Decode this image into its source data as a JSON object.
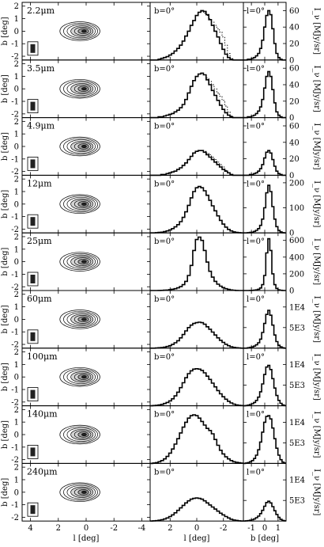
{
  "chart_data": {
    "type": "multi-panel figure (contour maps + histogram line profiles)",
    "columns": [
      {
        "name": "map",
        "xlabel": "l [deg]",
        "ylabel": "b [deg]",
        "xlim": [
          4.6,
          -4.6
        ],
        "ylim": [
          -2.3,
          2.3
        ],
        "xticks": [
          4,
          2,
          0,
          -2,
          -4
        ],
        "yticks": [
          2,
          1,
          0,
          -1,
          -2
        ]
      },
      {
        "name": "latitude-cut",
        "xlabel": "l [deg]",
        "xlim": [
          3.5,
          -3.5
        ],
        "xticks": [
          2,
          0,
          -2
        ]
      },
      {
        "name": "longitude-cut",
        "xlabel": "b [deg]",
        "xlim": [
          -1.6,
          1.6
        ],
        "xticks": [
          -1,
          0,
          1
        ]
      }
    ],
    "y_axis_label": "I_ν [MJy/sr]",
    "rows": [
      {
        "wavelength": "2.2μm",
        "cut_b": "b=0°",
        "cut_l": "l=0°",
        "ymax": 70,
        "ytick_labels": [
          "0",
          "20",
          "40",
          "60"
        ],
        "ytick_values": [
          0,
          20,
          40,
          60
        ],
        "l_profile": [
          0,
          0,
          0,
          1,
          2,
          3,
          4,
          6,
          8,
          11,
          14,
          18,
          23,
          29,
          35,
          42,
          48,
          54,
          58,
          60,
          59,
          55,
          49,
          42,
          35,
          28,
          20,
          13,
          7,
          3,
          1,
          0,
          0,
          0,
          0
        ],
        "l_dotted": [
          null,
          null,
          null,
          null,
          null,
          null,
          null,
          null,
          null,
          null,
          null,
          null,
          null,
          null,
          null,
          null,
          null,
          null,
          null,
          59,
          57,
          54,
          50,
          46,
          42,
          38,
          34,
          28,
          18,
          8,
          2,
          null,
          null,
          null,
          null
        ],
        "b_profile": [
          0,
          0,
          1,
          1,
          2,
          3,
          5,
          8,
          14,
          24,
          40,
          54,
          60,
          55,
          38,
          20,
          8,
          3,
          1,
          0,
          0
        ]
      },
      {
        "wavelength": "3.5μm",
        "cut_b": "b=0°",
        "cut_l": "l=0°",
        "ymax": 70,
        "ytick_labels": [
          "0",
          "20",
          "40",
          "60"
        ],
        "ytick_values": [
          0,
          20,
          40,
          60
        ],
        "l_profile": [
          0,
          0,
          0,
          1,
          1,
          2,
          3,
          4,
          5,
          7,
          9,
          12,
          16,
          22,
          30,
          38,
          45,
          50,
          53,
          54,
          52,
          46,
          40,
          33,
          27,
          21,
          15,
          10,
          6,
          3,
          1,
          0,
          0,
          0,
          0
        ],
        "l_dotted": [
          null,
          null,
          null,
          null,
          null,
          null,
          null,
          null,
          null,
          null,
          null,
          null,
          null,
          null,
          null,
          null,
          null,
          null,
          null,
          54,
          52,
          48,
          44,
          40,
          35,
          30,
          26,
          21,
          14,
          7,
          2,
          null,
          null,
          null,
          null
        ],
        "b_profile": [
          0,
          0,
          1,
          1,
          2,
          3,
          5,
          8,
          13,
          22,
          36,
          50,
          56,
          50,
          34,
          18,
          7,
          3,
          1,
          0,
          0
        ]
      },
      {
        "wavelength": "4.9μm",
        "cut_b": "b=0°",
        "cut_l": "l=0°",
        "ymax": 70,
        "ytick_labels": [
          "0",
          "20",
          "40",
          "60"
        ],
        "ytick_values": [
          0,
          20,
          40,
          60
        ],
        "l_profile": [
          0,
          0,
          0,
          0,
          1,
          1,
          2,
          3,
          4,
          5,
          7,
          9,
          12,
          15,
          19,
          23,
          27,
          29,
          30,
          30,
          28,
          25,
          22,
          19,
          16,
          13,
          10,
          7,
          5,
          3,
          1,
          0,
          0,
          0,
          0
        ],
        "l_dotted": [
          null,
          null,
          null,
          null,
          null,
          null,
          null,
          null,
          null,
          null,
          null,
          null,
          null,
          null,
          null,
          null,
          null,
          null,
          null,
          30,
          29,
          27,
          25,
          22,
          19,
          16,
          13,
          10,
          6,
          3,
          1,
          null,
          null,
          null,
          null
        ],
        "b_profile": [
          0,
          0,
          0,
          1,
          1,
          2,
          3,
          5,
          8,
          13,
          21,
          28,
          30,
          27,
          19,
          11,
          5,
          2,
          1,
          0,
          0
        ]
      },
      {
        "wavelength": "12μm",
        "cut_b": "b=0°",
        "cut_l": "l=0°",
        "ymax": 230,
        "ytick_labels": [
          "0",
          "100",
          "200"
        ],
        "ytick_values": [
          0,
          100,
          200
        ],
        "l_profile": [
          0,
          0,
          1,
          2,
          3,
          5,
          8,
          12,
          17,
          24,
          33,
          45,
          62,
          84,
          110,
          140,
          165,
          180,
          185,
          180,
          168,
          150,
          130,
          108,
          88,
          68,
          50,
          35,
          23,
          14,
          8,
          4,
          2,
          1,
          0
        ],
        "l_dotted": [],
        "b_profile": [
          0,
          0,
          1,
          2,
          3,
          6,
          10,
          17,
          30,
          55,
          100,
          160,
          190,
          165,
          105,
          55,
          25,
          10,
          4,
          1,
          0
        ]
      },
      {
        "wavelength": "25μm",
        "cut_b": "b=0°",
        "cut_l": "l=0°",
        "ymax": 690,
        "ytick_labels": [
          "0",
          "200",
          "400",
          "600"
        ],
        "ytick_values": [
          0,
          200,
          400,
          600
        ],
        "l_profile": [
          0,
          0,
          0,
          1,
          2,
          4,
          6,
          10,
          15,
          22,
          32,
          46,
          70,
          110,
          180,
          300,
          480,
          610,
          640,
          600,
          480,
          340,
          230,
          160,
          110,
          76,
          52,
          35,
          22,
          13,
          7,
          3,
          1,
          0,
          0
        ],
        "l_dotted": [],
        "b_profile": [
          0,
          0,
          0,
          1,
          2,
          4,
          8,
          15,
          30,
          70,
          180,
          450,
          620,
          480,
          200,
          70,
          25,
          8,
          3,
          1,
          0
        ]
      },
      {
        "wavelength": "60μm",
        "cut_b": "b=0°",
        "cut_l": "l=0°",
        "ymax": 14000,
        "ytick_labels": [
          "5E3",
          "1E4"
        ],
        "ytick_values": [
          5000,
          10000
        ],
        "l_profile": [
          0,
          0,
          50,
          100,
          150,
          250,
          400,
          600,
          900,
          1300,
          1800,
          2500,
          3300,
          4200,
          5000,
          5600,
          6000,
          6200,
          6300,
          6200,
          5800,
          5200,
          4600,
          3900,
          3200,
          2500,
          1900,
          1400,
          950,
          600,
          350,
          200,
          100,
          50,
          0
        ],
        "l_dotted": [],
        "b_profile": [
          0,
          0,
          100,
          200,
          300,
          500,
          800,
          1300,
          2200,
          3800,
          6000,
          8200,
          9200,
          8000,
          5600,
          3200,
          1600,
          700,
          300,
          100,
          0
        ]
      },
      {
        "wavelength": "100μm",
        "cut_b": "b=0°",
        "cut_l": "l=0°",
        "ymax": 14000,
        "ytick_labels": [
          "5E3",
          "1E4"
        ],
        "ytick_values": [
          5000,
          10000
        ],
        "l_profile": [
          0,
          50,
          100,
          200,
          350,
          550,
          800,
          1200,
          1700,
          2400,
          3300,
          4400,
          5600,
          6800,
          7800,
          8500,
          8900,
          9000,
          8900,
          8600,
          8000,
          7200,
          6400,
          5500,
          4600,
          3700,
          2900,
          2200,
          1600,
          1100,
          700,
          400,
          200,
          100,
          50
        ],
        "l_dotted": [],
        "b_profile": [
          0,
          50,
          150,
          300,
          500,
          800,
          1300,
          2100,
          3400,
          5300,
          7600,
          9400,
          9800,
          8800,
          6600,
          4300,
          2500,
          1300,
          600,
          200,
          50
        ]
      },
      {
        "wavelength": "140μm",
        "cut_b": "b=0°",
        "cut_l": "l=0°",
        "ymax": 14000,
        "ytick_labels": [
          "5E3",
          "1E4"
        ],
        "ytick_values": [
          5000,
          10000
        ],
        "l_profile": [
          0,
          100,
          200,
          400,
          700,
          1100,
          1700,
          2500,
          3500,
          4700,
          6000,
          7400,
          8800,
          10000,
          11000,
          11600,
          11800,
          11600,
          11000,
          10200,
          9300,
          8500,
          8000,
          7200,
          5800,
          4400,
          3200,
          2300,
          1600,
          1100,
          700,
          400,
          250,
          150,
          50
        ],
        "l_dotted": [],
        "b_profile": [
          0,
          100,
          200,
          400,
          700,
          1200,
          2000,
          3300,
          5200,
          7600,
          10000,
          11400,
          11600,
          10800,
          8600,
          6000,
          3700,
          2000,
          900,
          300,
          100
        ]
      },
      {
        "wavelength": "240μm",
        "cut_b": "b=0°",
        "cut_l": "l=0°",
        "ymax": 14000,
        "ytick_labels": [
          "5E3",
          "1E4"
        ],
        "ytick_values": [
          5000,
          10000
        ],
        "l_profile": [
          0,
          50,
          100,
          200,
          300,
          500,
          750,
          1100,
          1500,
          2000,
          2600,
          3200,
          3800,
          4400,
          4900,
          5300,
          5500,
          5600,
          5500,
          5300,
          4900,
          4400,
          3900,
          3400,
          2900,
          2400,
          1900,
          1500,
          1100,
          750,
          450,
          250,
          150,
          50,
          0
        ],
        "l_dotted": [],
        "b_profile": [
          0,
          50,
          100,
          200,
          300,
          500,
          800,
          1200,
          1800,
          2600,
          3600,
          4500,
          4800,
          4400,
          3500,
          2500,
          1600,
          900,
          400,
          150,
          50
        ]
      }
    ]
  }
}
